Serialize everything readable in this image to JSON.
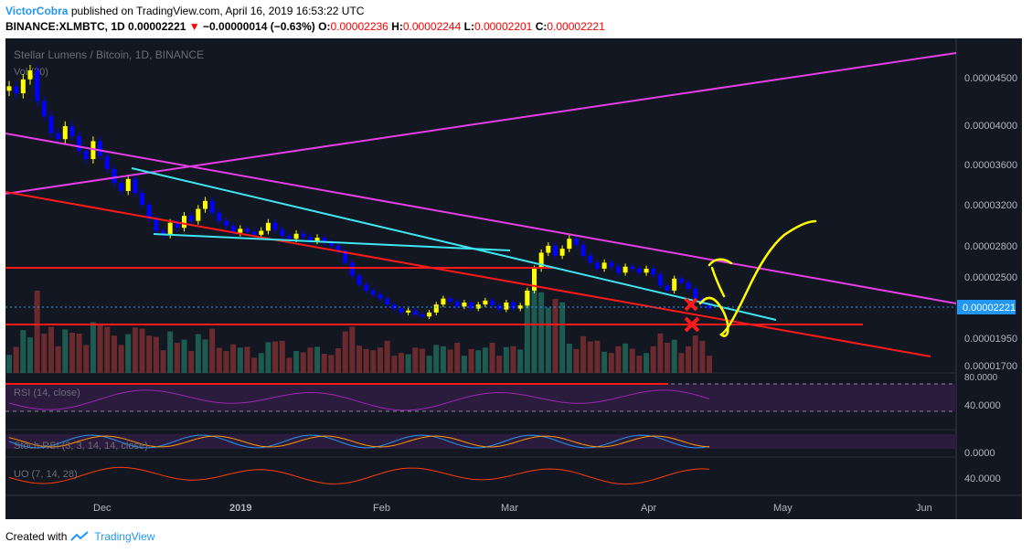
{
  "header": {
    "author": "VictorCobra",
    "published": "published on TradingView.com, April 16, 2019 16:53:22 UTC",
    "symbol": "BINANCE:XLMBTC, 1D",
    "last": "0.00002221",
    "change_arrow": "▼",
    "change": "−0.00000014 (−0.63%)",
    "o_label": "O:",
    "o": "0.00002236",
    "h_label": "H:",
    "h": "0.00002244",
    "l_label": "L:",
    "l": "0.00002201",
    "c_label": "C:",
    "c": "0.00002221"
  },
  "footer": {
    "created": "Created with",
    "brand": "TradingView"
  },
  "colors": {
    "background": "#131722",
    "bull": "#ffff00",
    "bear": "#0000ff",
    "magenta_line": "#e63ee6",
    "cyan_line": "#3ee6f0",
    "red_line": "#ff1a1a",
    "marker": "#ff1a1a",
    "drawing": "#ffff00",
    "last_price_label": "#2196f3"
  },
  "chart_data": {
    "type": "candlestick",
    "title": "Stellar Lumens / Bitcoin, 1D, BINANCE",
    "volume_label": "Vol (20)",
    "price_axis": {
      "ticks": [
        "0.00004500",
        "0.00004000",
        "0.00003600",
        "0.00003200",
        "0.00002800",
        "0.00002500",
        "0.00001950",
        "0.00001700"
      ],
      "last_price": "0.00002221"
    },
    "x_axis": {
      "ticks": [
        "Dec",
        "2019",
        "Feb",
        "Mar",
        "Apr",
        "May",
        "Jun"
      ]
    },
    "series": [
      {
        "name": "XLMBTC",
        "close_approx": [
          4.45e-05,
          4.38e-05,
          4.52e-05,
          4.61e-05,
          4.3e-05,
          4.15e-05,
          3.98e-05,
          3.92e-05,
          4.05e-05,
          3.95e-05,
          3.8e-05,
          3.72e-05,
          3.9e-05,
          3.75e-05,
          3.62e-05,
          3.48e-05,
          3.4e-05,
          3.52e-05,
          3.38e-05,
          3.26e-05,
          3.12e-05,
          3e-05,
          2.96e-05,
          3.08e-05,
          3.03e-05,
          3.15e-05,
          3.1e-05,
          3.22e-05,
          3.3e-05,
          3.18e-05,
          3.1e-05,
          3.05e-05,
          2.98e-05,
          3.02e-05,
          2.99e-05,
          2.96e-05,
          3e-05,
          3.08e-05,
          3.01e-05,
          2.95e-05,
          2.92e-05,
          2.97e-05,
          2.94e-05,
          2.9e-05,
          2.93e-05,
          2.88e-05,
          2.85e-05,
          2.8e-05,
          2.68e-05,
          2.55e-05,
          2.46e-05,
          2.4e-05,
          2.36e-05,
          2.32e-05,
          2.26e-05,
          2.22e-05,
          2.18e-05,
          2.2e-05,
          2.16e-05,
          2.14e-05,
          2.18e-05,
          2.26e-05,
          2.32e-05,
          2.29e-05,
          2.24e-05,
          2.28e-05,
          2.22e-05,
          2.26e-05,
          2.3e-05,
          2.25e-05,
          2.21e-05,
          2.28e-05,
          2.22e-05,
          2.25e-05,
          2.4e-05,
          2.62e-05,
          2.78e-05,
          2.85e-05,
          2.75e-05,
          2.82e-05,
          2.92e-05,
          2.86e-05,
          2.75e-05,
          2.68e-05,
          2.62e-05,
          2.68e-05,
          2.64e-05,
          2.58e-05,
          2.64e-05,
          2.62e-05,
          2.58e-05,
          2.62e-05,
          2.56e-05,
          2.45e-05,
          2.4e-05,
          2.52e-05,
          2.48e-05,
          2.42e-05,
          2.32e-05,
          2.26e-05,
          2.22e-05
        ]
      }
    ],
    "indicators": [
      {
        "name": "RSI (14, close)",
        "ticks": [
          "80.0000",
          "40.0000"
        ]
      },
      {
        "name": "Stoch RSI (3, 3, 14, 14, close)",
        "ticks": [
          "0.0000"
        ]
      },
      {
        "name": "UO (7, 14, 28)",
        "ticks": [
          "40.0000"
        ]
      }
    ],
    "annotations": [
      "magenta trendlines",
      "cyan trendline",
      "red support lines",
      "red X markers",
      "yellow projection path"
    ]
  }
}
